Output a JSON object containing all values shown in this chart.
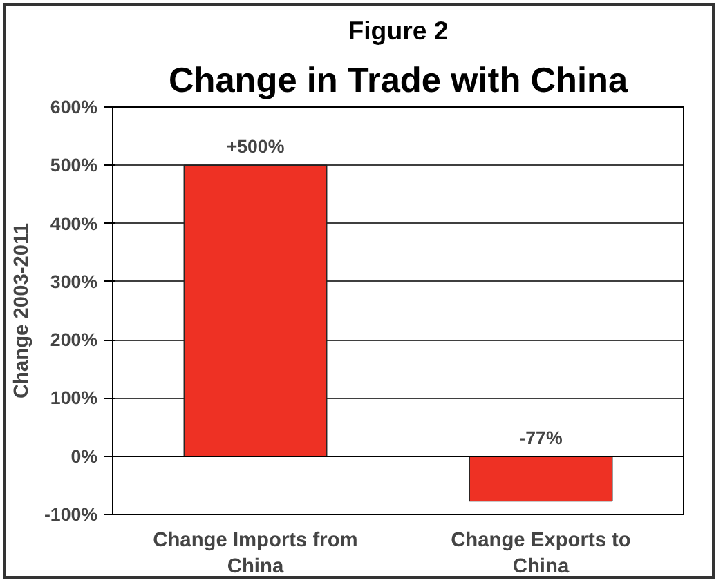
{
  "chart_data": {
    "type": "bar",
    "title": "Change in Trade with China",
    "subtitle": "Figure 2",
    "ylabel": "Change 2003-2011",
    "categories": [
      "Change Imports from China",
      "Change Exports to China"
    ],
    "values": [
      500,
      -77
    ],
    "color": "#ee3124",
    "value_labels": [
      "+500%",
      "-77%"
    ],
    "ylim": [
      -100,
      600
    ],
    "yticks": [
      {
        "value": -100,
        "label": "-100%"
      },
      {
        "value": 0,
        "label": "0%"
      },
      {
        "value": 100,
        "label": "100%"
      },
      {
        "value": 200,
        "label": "200%"
      },
      {
        "value": 300,
        "label": "300%"
      },
      {
        "value": 400,
        "label": "400%"
      },
      {
        "value": 500,
        "label": "500%"
      },
      {
        "value": 600,
        "label": "600%"
      }
    ],
    "grid": "y"
  }
}
